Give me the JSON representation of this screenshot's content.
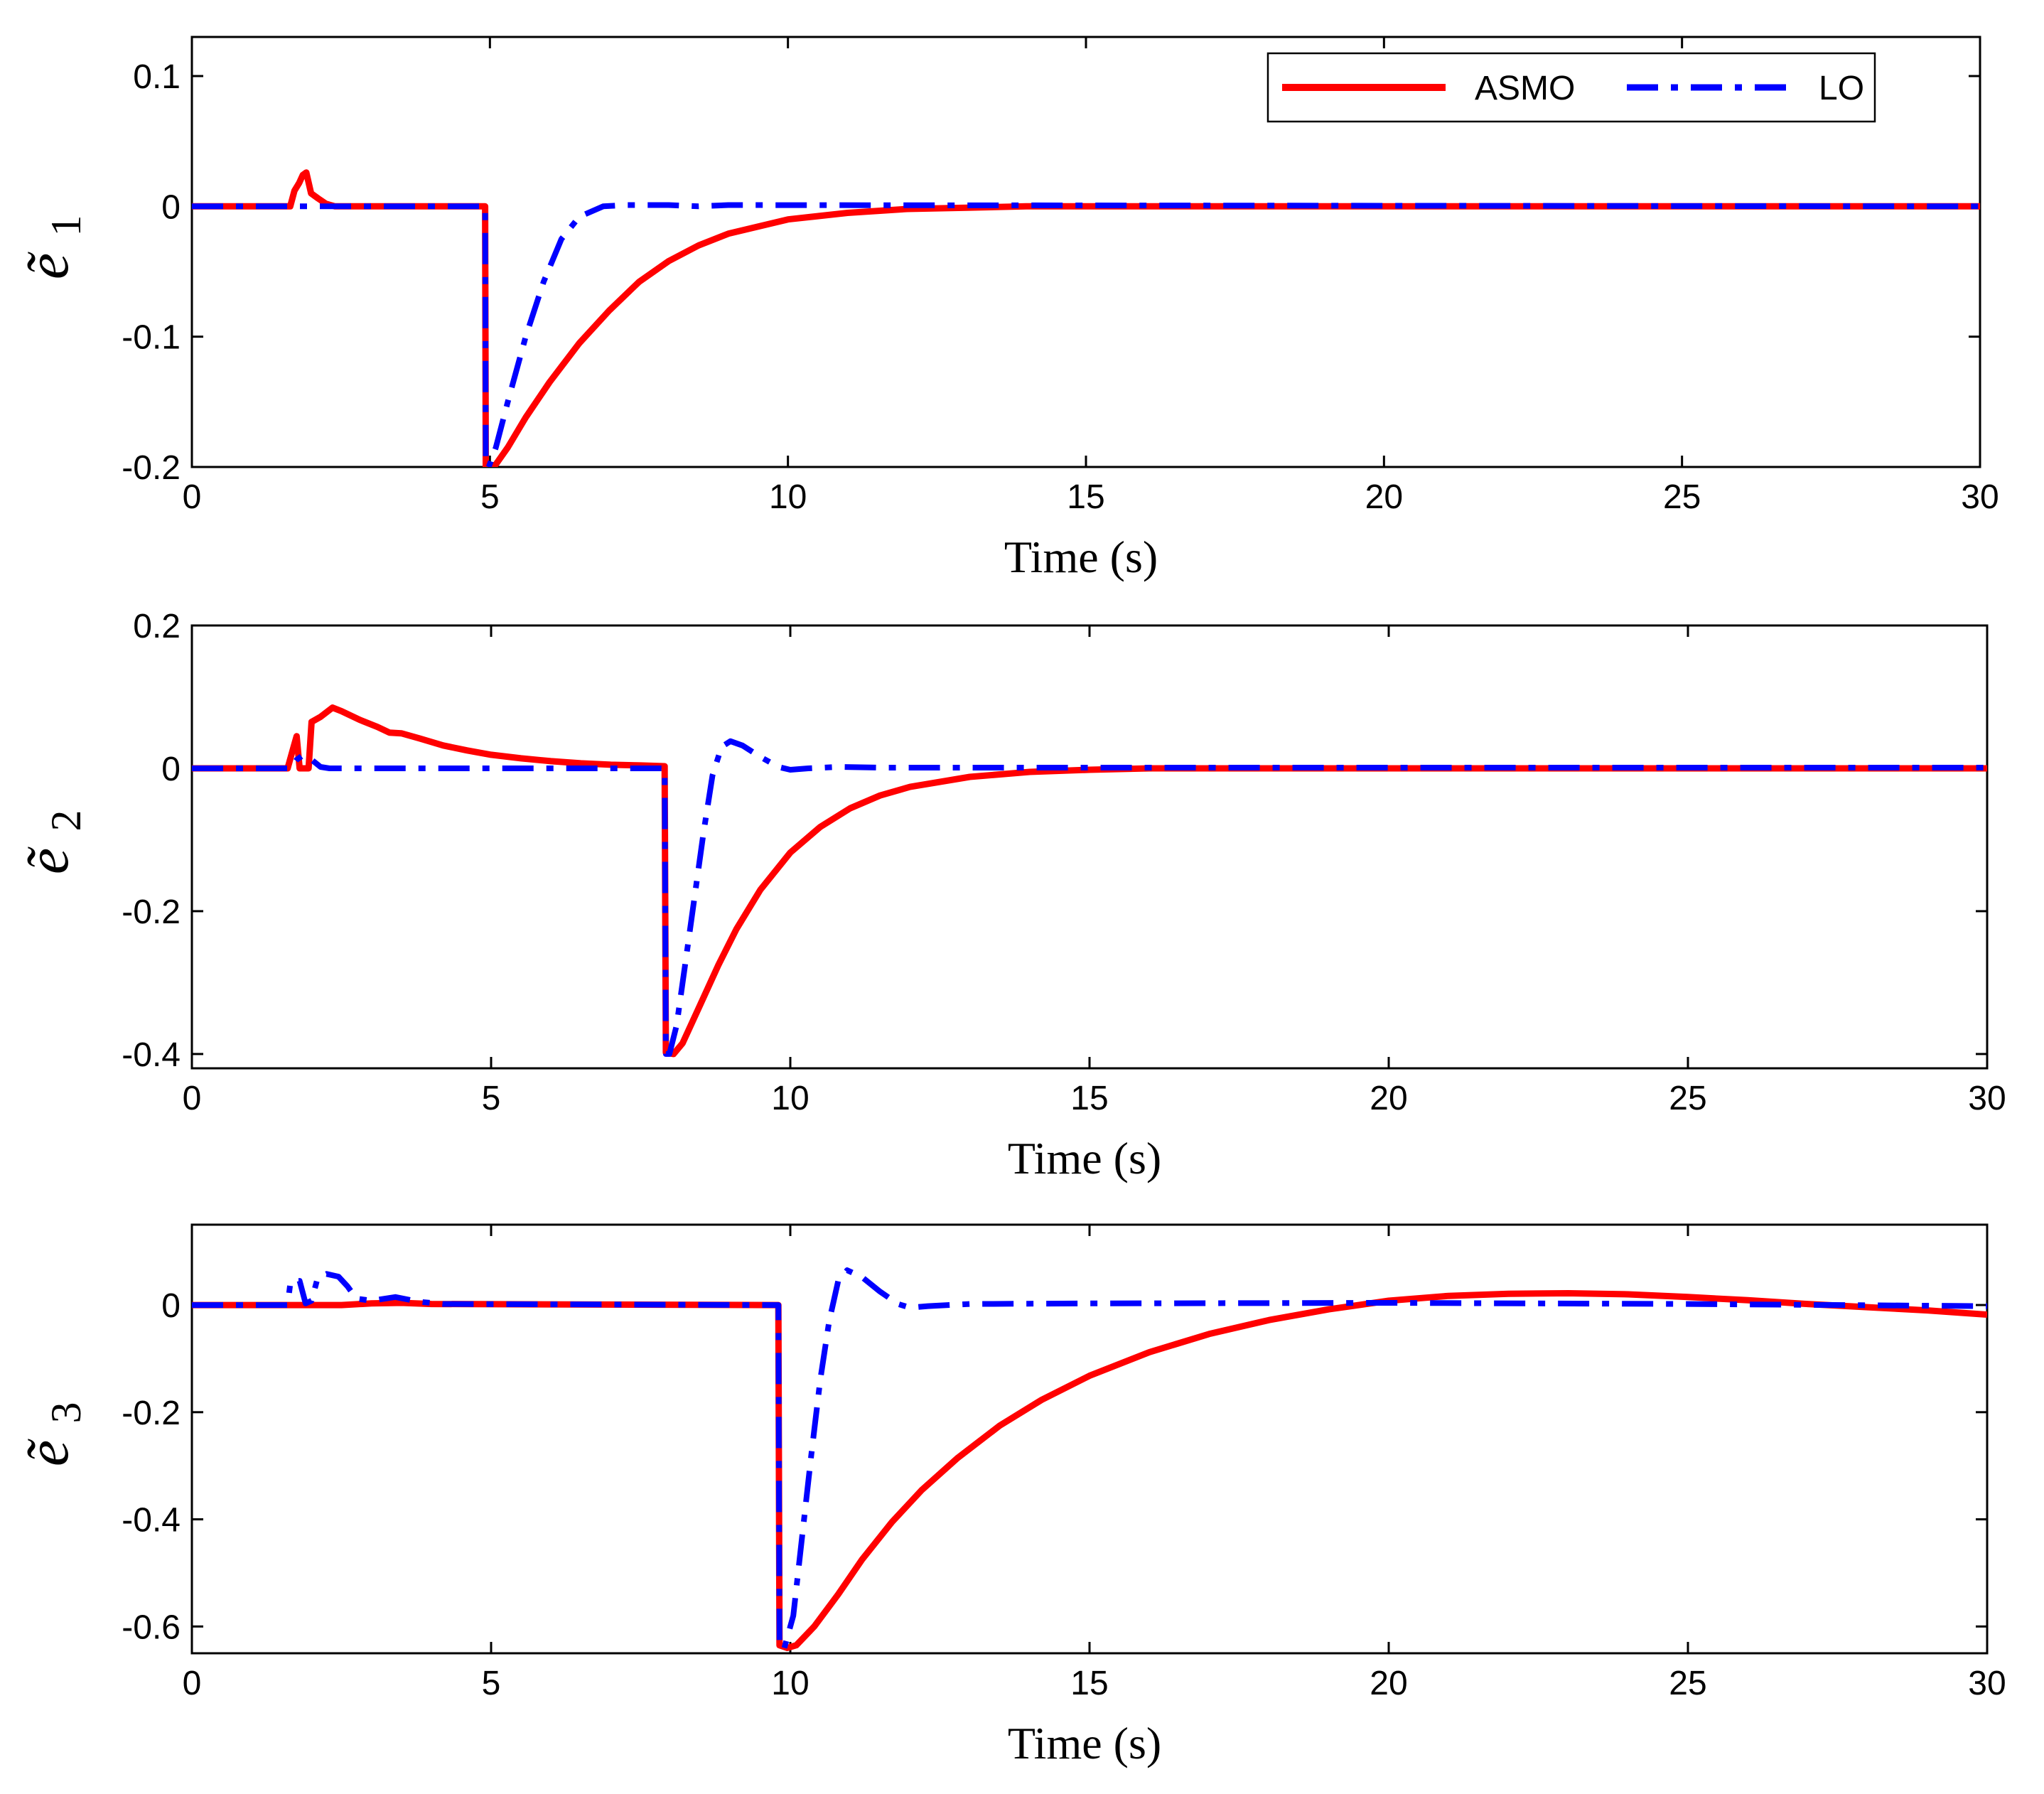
{
  "chart_data": [
    {
      "type": "line",
      "ylabel": "ẽ",
      "ylabel_subscript": "1",
      "xlabel": "Time (s)",
      "xlim": [
        0,
        30
      ],
      "ylim": [
        -0.2,
        0.13
      ],
      "xticks": [
        0,
        5,
        10,
        15,
        20,
        25,
        30
      ],
      "xtick_labels": [
        "0",
        "5",
        "10",
        "15",
        "20",
        "25",
        "30"
      ],
      "yticks": [
        0.1,
        0,
        -0.1,
        -0.2
      ],
      "ytick_labels": [
        "0.1",
        "0",
        "-0.1",
        "-0.2"
      ],
      "grid": false,
      "legend": {
        "placement": "top-right",
        "entries": [
          "ASMO",
          "LO"
        ]
      },
      "series": [
        {
          "name": "ASMO",
          "color": "#ff0000",
          "style": "solid",
          "points": [
            [
              0,
              0
            ],
            [
              1.65,
              0
            ],
            [
              1.72,
              0.012
            ],
            [
              1.8,
              0.018
            ],
            [
              1.86,
              0.024
            ],
            [
              1.92,
              0.026
            ],
            [
              2.0,
              0.01
            ],
            [
              2.12,
              0.006
            ],
            [
              2.25,
              0.002
            ],
            [
              2.4,
              0
            ],
            [
              4.92,
              0
            ],
            [
              4.93,
              -0.2
            ],
            [
              5.0,
              -0.2
            ],
            [
              5.1,
              -0.198
            ],
            [
              5.3,
              -0.185
            ],
            [
              5.6,
              -0.162
            ],
            [
              6.0,
              -0.135
            ],
            [
              6.5,
              -0.105
            ],
            [
              7.0,
              -0.08
            ],
            [
              7.5,
              -0.058
            ],
            [
              8.0,
              -0.042
            ],
            [
              8.5,
              -0.03
            ],
            [
              9.0,
              -0.021
            ],
            [
              10.0,
              -0.01
            ],
            [
              11.0,
              -0.005
            ],
            [
              12.0,
              -0.002
            ],
            [
              13.0,
              -0.001
            ],
            [
              14.0,
              0
            ],
            [
              30.0,
              0
            ]
          ]
        },
        {
          "name": "LO",
          "color": "#0000ff",
          "style": "dashdot",
          "points": [
            [
              0,
              0
            ],
            [
              4.92,
              0
            ],
            [
              4.93,
              -0.2
            ],
            [
              4.98,
              -0.2
            ],
            [
              5.1,
              -0.185
            ],
            [
              5.3,
              -0.15
            ],
            [
              5.6,
              -0.1
            ],
            [
              5.9,
              -0.058
            ],
            [
              6.2,
              -0.025
            ],
            [
              6.5,
              -0.008
            ],
            [
              6.9,
              0
            ],
            [
              7.3,
              0.001
            ],
            [
              8.0,
              0.001
            ],
            [
              8.5,
              0
            ],
            [
              9.0,
              0.001
            ],
            [
              30.0,
              0
            ]
          ]
        }
      ]
    },
    {
      "type": "line",
      "ylabel": "ẽ",
      "ylabel_subscript": "2",
      "xlabel": "Time (s)",
      "xlim": [
        0,
        30
      ],
      "ylim": [
        -0.42,
        0.2
      ],
      "xticks": [
        0,
        5,
        10,
        15,
        20,
        25,
        30
      ],
      "xtick_labels": [
        "0",
        "5",
        "10",
        "15",
        "20",
        "25",
        "30"
      ],
      "yticks": [
        0.2,
        0,
        -0.2,
        -0.4
      ],
      "ytick_labels": [
        "0.2",
        "0",
        "-0.2",
        "-0.4"
      ],
      "grid": false,
      "series": [
        {
          "name": "ASMO",
          "color": "#ff0000",
          "style": "solid",
          "points": [
            [
              0,
              0
            ],
            [
              1.6,
              0
            ],
            [
              1.7,
              0.03
            ],
            [
              1.75,
              0.045
            ],
            [
              1.8,
              0
            ],
            [
              1.95,
              0
            ],
            [
              2.0,
              0.065
            ],
            [
              2.15,
              0.072
            ],
            [
              2.35,
              0.085
            ],
            [
              2.5,
              0.08
            ],
            [
              2.8,
              0.068
            ],
            [
              3.1,
              0.058
            ],
            [
              3.3,
              0.05
            ],
            [
              3.5,
              0.049
            ],
            [
              3.8,
              0.042
            ],
            [
              4.2,
              0.032
            ],
            [
              4.6,
              0.025
            ],
            [
              5.0,
              0.019
            ],
            [
              5.5,
              0.014
            ],
            [
              6.0,
              0.01
            ],
            [
              6.5,
              0.007
            ],
            [
              7.0,
              0.005
            ],
            [
              7.5,
              0.004
            ],
            [
              7.9,
              0.003
            ],
            [
              7.92,
              -0.398
            ],
            [
              8.05,
              -0.4
            ],
            [
              8.2,
              -0.385
            ],
            [
              8.5,
              -0.33
            ],
            [
              8.8,
              -0.275
            ],
            [
              9.1,
              -0.225
            ],
            [
              9.5,
              -0.17
            ],
            [
              10.0,
              -0.118
            ],
            [
              10.5,
              -0.082
            ],
            [
              11.0,
              -0.056
            ],
            [
              11.5,
              -0.038
            ],
            [
              12.0,
              -0.026
            ],
            [
              13.0,
              -0.012
            ],
            [
              14.0,
              -0.005
            ],
            [
              15.0,
              -0.002
            ],
            [
              16.0,
              0
            ],
            [
              30.0,
              0
            ]
          ]
        },
        {
          "name": "LO",
          "color": "#0000ff",
          "style": "dashdot",
          "points": [
            [
              0,
              0
            ],
            [
              1.65,
              0
            ],
            [
              1.75,
              0.012
            ],
            [
              1.85,
              0.018
            ],
            [
              2.0,
              0.012
            ],
            [
              2.15,
              0.002
            ],
            [
              2.3,
              0
            ],
            [
              7.9,
              0
            ],
            [
              7.92,
              -0.4
            ],
            [
              7.98,
              -0.4
            ],
            [
              8.1,
              -0.36
            ],
            [
              8.25,
              -0.27
            ],
            [
              8.4,
              -0.18
            ],
            [
              8.55,
              -0.09
            ],
            [
              8.7,
              -0.01
            ],
            [
              8.85,
              0.03
            ],
            [
              9.0,
              0.038
            ],
            [
              9.2,
              0.032
            ],
            [
              9.5,
              0.016
            ],
            [
              9.8,
              0.002
            ],
            [
              10.0,
              -0.002
            ],
            [
              10.3,
              0
            ],
            [
              10.8,
              0.002
            ],
            [
              11.5,
              0.001
            ],
            [
              30.0,
              0.001
            ]
          ]
        }
      ]
    },
    {
      "type": "line",
      "ylabel": "ẽ",
      "ylabel_subscript": "3",
      "xlabel": "Time (s)",
      "xlim": [
        0,
        30
      ],
      "ylim": [
        -0.65,
        0.15
      ],
      "xticks": [
        0,
        5,
        10,
        15,
        20,
        25,
        30
      ],
      "xtick_labels": [
        "0",
        "5",
        "10",
        "15",
        "20",
        "25",
        "30"
      ],
      "yticks": [
        0,
        -0.2,
        -0.4,
        -0.6
      ],
      "ytick_labels": [
        "0",
        "-0.2",
        "-0.4",
        "-0.6"
      ],
      "grid": false,
      "series": [
        {
          "name": "ASMO",
          "color": "#ff0000",
          "style": "solid",
          "points": [
            [
              0,
              0
            ],
            [
              2.5,
              0
            ],
            [
              3.0,
              0.003
            ],
            [
              3.5,
              0.004
            ],
            [
              4.0,
              0.002
            ],
            [
              9.8,
              0
            ],
            [
              9.82,
              -0.635
            ],
            [
              9.95,
              -0.64
            ],
            [
              10.1,
              -0.635
            ],
            [
              10.4,
              -0.6
            ],
            [
              10.8,
              -0.54
            ],
            [
              11.2,
              -0.475
            ],
            [
              11.7,
              -0.405
            ],
            [
              12.2,
              -0.345
            ],
            [
              12.8,
              -0.285
            ],
            [
              13.5,
              -0.225
            ],
            [
              14.2,
              -0.177
            ],
            [
              15.0,
              -0.132
            ],
            [
              16.0,
              -0.088
            ],
            [
              17.0,
              -0.054
            ],
            [
              18.0,
              -0.028
            ],
            [
              19.0,
              -0.008
            ],
            [
              20.0,
              0.008
            ],
            [
              21.0,
              0.017
            ],
            [
              22.0,
              0.021
            ],
            [
              23.0,
              0.022
            ],
            [
              24.0,
              0.02
            ],
            [
              25.0,
              0.015
            ],
            [
              26.0,
              0.009
            ],
            [
              27.0,
              0.002
            ],
            [
              28.0,
              -0.004
            ],
            [
              29.0,
              -0.01
            ],
            [
              30.0,
              -0.018
            ]
          ]
        },
        {
          "name": "LO",
          "color": "#0000ff",
          "style": "dashdot",
          "points": [
            [
              0,
              0
            ],
            [
              1.6,
              0
            ],
            [
              1.65,
              0.045
            ],
            [
              1.8,
              0.045
            ],
            [
              1.9,
              0.003
            ],
            [
              2.0,
              0.008
            ],
            [
              2.1,
              0.05
            ],
            [
              2.25,
              0.058
            ],
            [
              2.45,
              0.053
            ],
            [
              2.6,
              0.035
            ],
            [
              2.75,
              0.012
            ],
            [
              3.0,
              0.008
            ],
            [
              3.4,
              0.015
            ],
            [
              3.8,
              0.006
            ],
            [
              4.2,
              0.002
            ],
            [
              9.8,
              0
            ],
            [
              9.82,
              -0.64
            ],
            [
              9.9,
              -0.64
            ],
            [
              10.05,
              -0.58
            ],
            [
              10.2,
              -0.43
            ],
            [
              10.35,
              -0.28
            ],
            [
              10.5,
              -0.14
            ],
            [
              10.65,
              -0.03
            ],
            [
              10.8,
              0.045
            ],
            [
              10.95,
              0.065
            ],
            [
              11.2,
              0.052
            ],
            [
              11.5,
              0.025
            ],
            [
              11.8,
              0.002
            ],
            [
              12.0,
              -0.005
            ],
            [
              12.3,
              -0.002
            ],
            [
              13.0,
              0.002
            ],
            [
              15.0,
              0.003
            ],
            [
              20.0,
              0.004
            ],
            [
              25.0,
              0.002
            ],
            [
              30.0,
              -0.002
            ]
          ]
        }
      ]
    }
  ]
}
